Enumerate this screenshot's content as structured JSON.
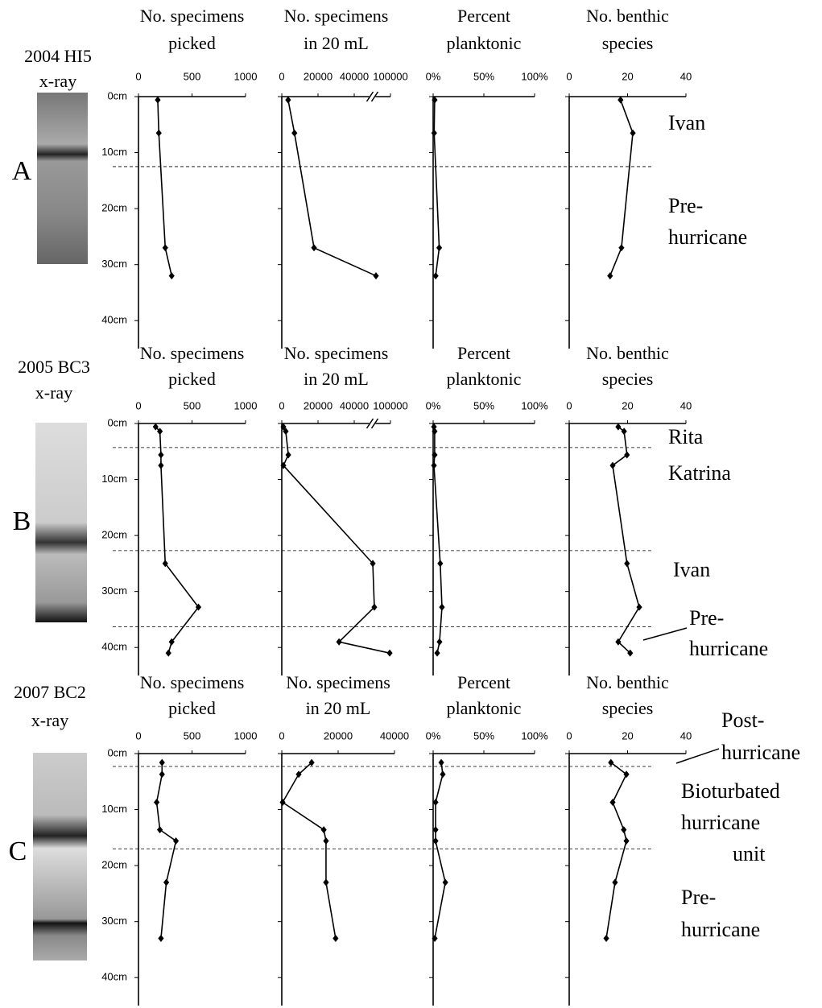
{
  "chart_data": [
    {
      "type": "line",
      "title": [
        "No. specimens",
        "picked"
      ],
      "xlim": [
        0,
        1000
      ],
      "xticks": [
        0,
        500,
        1000
      ],
      "ylim": [
        0,
        45
      ],
      "yticks": [
        {
          "value": 0,
          "label": "0cm"
        },
        {
          "value": 10,
          "label": "10cm"
        },
        {
          "value": 20,
          "label": "20cm"
        },
        {
          "value": 30,
          "label": "30cm"
        },
        {
          "value": 40,
          "label": "40cm"
        }
      ],
      "color": "#000000",
      "values": [
        180,
        190,
        250,
        310
      ],
      "depths": [
        0.6,
        6.5,
        27,
        32
      ]
    },
    {
      "type": "line",
      "title": [
        "No. specimens",
        "in 20 mL"
      ],
      "xlim": [
        0,
        100000
      ],
      "xticks": [
        0,
        20000,
        40000,
        100000
      ],
      "x_axis_break": true,
      "ylim": [
        0,
        45
      ],
      "color": "#000000",
      "values": [
        3500,
        7000,
        17800,
        76000
      ],
      "depths": [
        0.6,
        6.5,
        27,
        32
      ]
    },
    {
      "type": "line",
      "title": [
        "Percent",
        "planktonic"
      ],
      "xlim": [
        0,
        100
      ],
      "xticks": [
        {
          "value": 0,
          "label": "0%"
        },
        {
          "value": 50,
          "label": "50%"
        },
        {
          "value": 100,
          "label": "100%"
        }
      ],
      "ylim": [
        0,
        45
      ],
      "color": "#000000",
      "values": [
        1.5,
        1,
        6,
        2.5
      ],
      "depths": [
        0.6,
        6.5,
        27,
        32
      ]
    },
    {
      "type": "line",
      "title": [
        "No. benthic",
        "species"
      ],
      "xlim": [
        0,
        40
      ],
      "xticks": [
        0,
        20,
        40
      ],
      "ylim": [
        0,
        45
      ],
      "color": "#000000",
      "values": [
        17.6,
        21.8,
        17.9,
        14
      ],
      "depths": [
        0.6,
        6.5,
        27,
        32
      ]
    },
    {
      "type": "line",
      "title": [
        "No. specimens",
        "picked"
      ],
      "xlim": [
        0,
        1000
      ],
      "xticks": [
        0,
        500,
        1000
      ],
      "ylim": [
        0,
        45
      ],
      "yticks": [
        {
          "value": 0,
          "label": "0cm"
        },
        {
          "value": 10,
          "label": "10cm"
        },
        {
          "value": 20,
          "label": "20cm"
        },
        {
          "value": 30,
          "label": "30cm"
        },
        {
          "value": 40,
          "label": "40cm"
        }
      ],
      "color": "#000000",
      "values": [
        160,
        200,
        210,
        210,
        250,
        560,
        310,
        280
      ],
      "depths": [
        0.6,
        1.4,
        5.6,
        7.5,
        25,
        32.8,
        39,
        41
      ]
    },
    {
      "type": "line",
      "title": [
        "No. specimens",
        "in 20 mL"
      ],
      "xlim": [
        0,
        100000
      ],
      "xticks": [
        0,
        20000,
        40000,
        100000
      ],
      "x_axis_break": true,
      "ylim": [
        0,
        45
      ],
      "color": "#000000",
      "values": [
        900,
        2200,
        3600,
        900,
        70700,
        73300,
        31600,
        98700
      ],
      "depths": [
        0.6,
        1.4,
        5.6,
        7.5,
        25,
        32.8,
        39,
        41
      ]
    },
    {
      "type": "line",
      "title": [
        "Percent",
        "planktonic"
      ],
      "xlim": [
        0,
        100
      ],
      "xticks": [
        {
          "value": 0,
          "label": "0%"
        },
        {
          "value": 50,
          "label": "50%"
        },
        {
          "value": 100,
          "label": "100%"
        }
      ],
      "ylim": [
        0,
        45
      ],
      "color": "#000000",
      "values": [
        0.8,
        1.5,
        1.5,
        0.8,
        7,
        8.7,
        6.3,
        4
      ],
      "depths": [
        0.6,
        1.4,
        5.6,
        7.5,
        25,
        32.8,
        39,
        41
      ]
    },
    {
      "type": "line",
      "title": [
        "No. benthic",
        "species"
      ],
      "xlim": [
        0,
        40
      ],
      "xticks": [
        0,
        20,
        40
      ],
      "ylim": [
        0,
        45
      ],
      "color": "#000000",
      "values": [
        16.8,
        18.8,
        19.8,
        14.9,
        19.8,
        24,
        16.8,
        20.9
      ],
      "depths": [
        0.6,
        1.4,
        5.6,
        7.5,
        25,
        32.8,
        39,
        41
      ]
    },
    {
      "type": "line",
      "title": [
        "No. specimens",
        "picked"
      ],
      "xlim": [
        0,
        1000
      ],
      "xticks": [
        0,
        500,
        1000
      ],
      "ylim": [
        0,
        45
      ],
      "yticks": [
        {
          "value": 0,
          "label": "0cm"
        },
        {
          "value": 10,
          "label": "10cm"
        },
        {
          "value": 20,
          "label": "20cm"
        },
        {
          "value": 30,
          "label": "30cm"
        },
        {
          "value": 40,
          "label": "40cm"
        }
      ],
      "color": "#000000",
      "values": [
        220,
        220,
        170,
        200,
        350,
        260,
        210
      ],
      "depths": [
        1.6,
        3.7,
        8.7,
        13.6,
        15.6,
        23,
        33
      ]
    },
    {
      "type": "line",
      "title": [
        "No. specimens",
        "in 20 mL"
      ],
      "xlim": [
        0,
        40000
      ],
      "xticks": [
        0,
        20000,
        40000
      ],
      "ylim": [
        0,
        45
      ],
      "color": "#000000",
      "values": [
        10600,
        6000,
        300,
        14900,
        15700,
        15700,
        19100
      ],
      "depths": [
        1.6,
        3.7,
        8.7,
        13.6,
        15.6,
        23,
        33
      ]
    },
    {
      "type": "line",
      "title": [
        "Percent",
        "planktonic"
      ],
      "xlim": [
        0,
        100
      ],
      "xticks": [
        {
          "value": 0,
          "label": "0%"
        },
        {
          "value": 50,
          "label": "50%"
        },
        {
          "value": 100,
          "label": "100%"
        }
      ],
      "ylim": [
        0,
        45
      ],
      "color": "#000000",
      "values": [
        8,
        9.5,
        2.4,
        2.4,
        2.4,
        12,
        1.6
      ],
      "depths": [
        1.6,
        3.7,
        8.7,
        13.6,
        15.6,
        23,
        33
      ]
    },
    {
      "type": "line",
      "title": [
        "No. benthic",
        "species"
      ],
      "xlim": [
        0,
        40
      ],
      "xticks": [
        0,
        20,
        40
      ],
      "ylim": [
        0,
        45
      ],
      "color": "#000000",
      "values": [
        14.3,
        19.6,
        14.9,
        18.7,
        19.6,
        15.7,
        12.7
      ],
      "depths": [
        1.6,
        3.7,
        8.7,
        13.6,
        15.6,
        23,
        33
      ]
    }
  ],
  "cores": [
    {
      "title": "2004 HI5",
      "subtitle": "x-ray",
      "letter": "A",
      "annotations": [
        "Ivan",
        "Pre-",
        "hurricane"
      ],
      "boundaries": [
        12.5
      ]
    },
    {
      "title": "2005 BC3",
      "subtitle": "x-ray",
      "letter": "B",
      "annotations": [
        "Rita",
        "Katrina",
        "Ivan",
        "Pre-",
        "hurricane"
      ],
      "boundaries": [
        4.3,
        22.7,
        36.3
      ]
    },
    {
      "title": "2007 BC2",
      "subtitle": "x-ray",
      "letter": "C",
      "annotations": [
        "Post-",
        "hurricane",
        "Bioturbated",
        "hurricane",
        "unit",
        "Pre-",
        "hurricane"
      ],
      "boundaries": [
        2.3,
        17
      ]
    }
  ]
}
